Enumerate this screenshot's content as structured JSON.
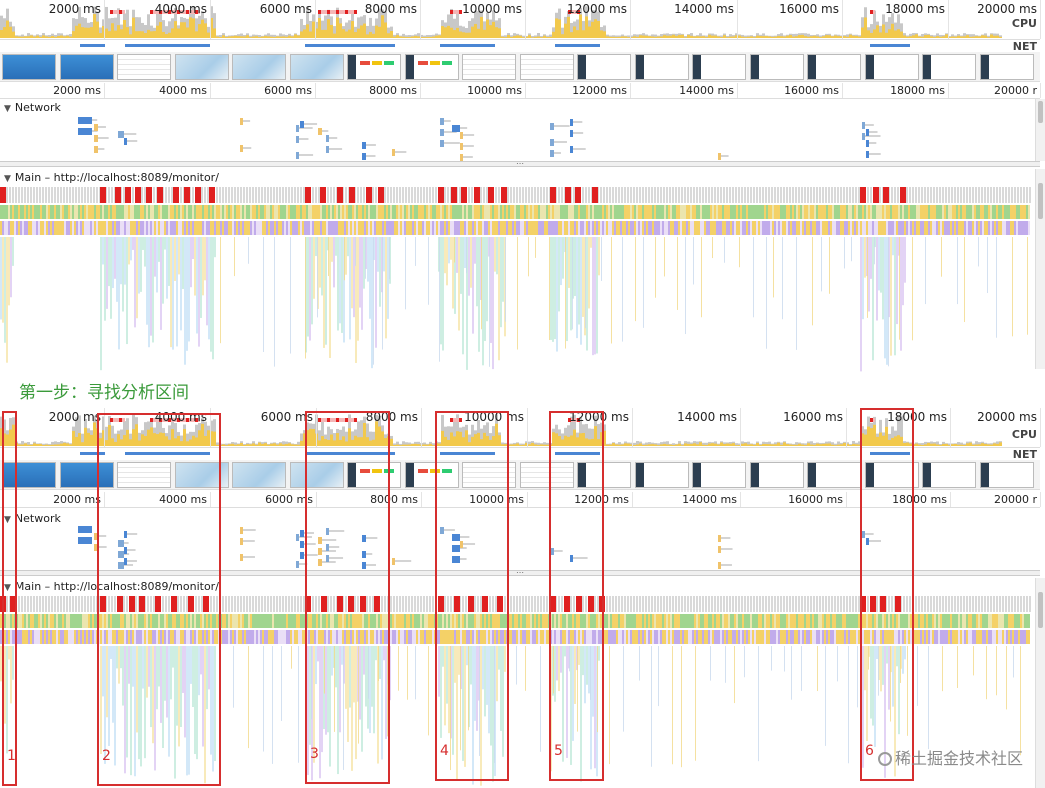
{
  "ticks_ms": [
    "2000 ms",
    "4000 ms",
    "6000 ms",
    "8000 ms",
    "10000 ms",
    "12000 ms",
    "14000 ms",
    "16000 ms",
    "18000 ms",
    "20000 ms"
  ],
  "ruler_ticks_ms": [
    "2000 ms",
    "4000 ms",
    "6000 ms",
    "8000 ms",
    "10000 ms",
    "12000 ms",
    "14000 ms",
    "16000 ms",
    "18000 ms",
    "20000 r"
  ],
  "tracks": {
    "cpu": "CPU",
    "net": "NET"
  },
  "sections": {
    "network": "Network",
    "main": "Main – http://localhost:8089/monitor/"
  },
  "caption": "第一步：寻找分析区间",
  "regions": [
    "1",
    "2",
    "3",
    "4",
    "5",
    "6"
  ],
  "watermark": "稀土掘金技术社区",
  "colors": {
    "scripting": "#f2c94c",
    "rendering": "#b69ce8",
    "painting": "#8fce7a",
    "system": "#cfcfcf",
    "longtask": "#e02020",
    "network_blue": "#4a86d4",
    "region_border": "#d62e2e",
    "caption_green": "#3a9a3a"
  }
}
